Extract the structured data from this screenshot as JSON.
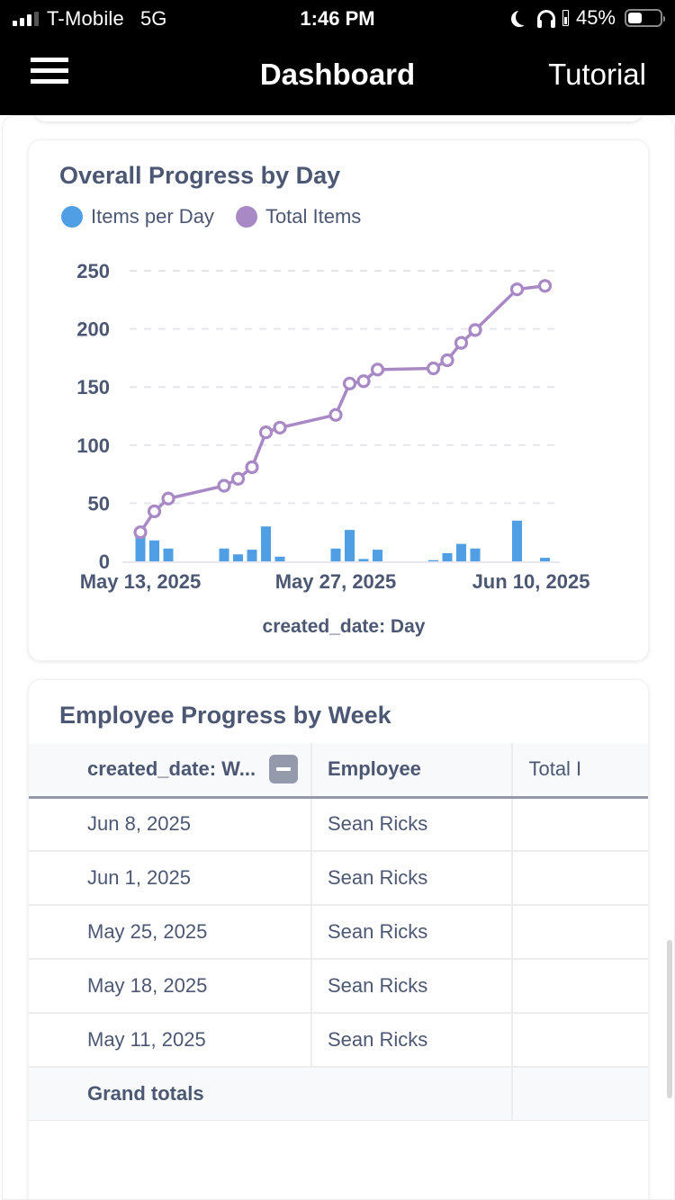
{
  "status_bar": {
    "carrier": "T-Mobile",
    "network": "5G",
    "time": "1:46 PM",
    "battery_percent_label": "45%",
    "battery_level": 0.45,
    "icons": [
      "signal-icon",
      "moon-icon",
      "headphones-icon",
      "battery-icon"
    ]
  },
  "nav": {
    "menu_icon": "hamburger-menu-icon",
    "title": "Dashboard",
    "right_action": "Tutorial"
  },
  "chart_card": {
    "title": "Overall Progress by Day",
    "legend": [
      {
        "label": "Items per Day",
        "color": "#509ee3"
      },
      {
        "label": "Total Items",
        "color": "#a989c5"
      }
    ]
  },
  "chart_data": {
    "type": "bar",
    "combo": "bar + line",
    "title": "Overall Progress by Day",
    "xlabel": "created_date: Day",
    "ylabel": "",
    "ylim": [
      0,
      250
    ],
    "yticks": [
      0,
      50,
      100,
      150,
      200,
      250
    ],
    "xticks": [
      "May 13, 2025",
      "May 27, 2025",
      "Jun 10, 2025"
    ],
    "x_range_days": [
      "May 13, 2025",
      "Jun 11, 2025"
    ],
    "grid": true,
    "legend_position": "top-left",
    "categories": [
      "May 13",
      "May 14",
      "May 15",
      "May 19",
      "May 20",
      "May 21",
      "May 22",
      "May 23",
      "May 27",
      "May 28",
      "May 29",
      "May 30",
      "Jun 3",
      "Jun 4",
      "Jun 5",
      "Jun 6",
      "Jun 9",
      "Jun 11"
    ],
    "day_offsets": [
      0,
      1,
      2,
      6,
      7,
      8,
      9,
      10,
      14,
      15,
      16,
      17,
      21,
      22,
      23,
      24,
      27,
      29
    ],
    "series": [
      {
        "name": "Items per Day",
        "type": "bar",
        "color": "#509ee3",
        "values": [
          25,
          18,
          11,
          11,
          6,
          10,
          30,
          4,
          11,
          27,
          2,
          10,
          1,
          7,
          15,
          11,
          35,
          3
        ]
      },
      {
        "name": "Total Items",
        "type": "line",
        "color": "#a989c5",
        "values": [
          25,
          43,
          54,
          65,
          71,
          81,
          111,
          115,
          126,
          153,
          155,
          165,
          166,
          173,
          188,
          199,
          234,
          237
        ]
      }
    ]
  },
  "table_card": {
    "title": "Employee Progress by Week",
    "columns": [
      "created_date: W...",
      "Employee",
      "Total I"
    ],
    "rows": [
      {
        "week": "Jun 8, 2025",
        "employee": "Sean Ricks",
        "total": ""
      },
      {
        "week": "Jun 1, 2025",
        "employee": "Sean Ricks",
        "total": ""
      },
      {
        "week": "May 25, 2025",
        "employee": "Sean Ricks",
        "total": ""
      },
      {
        "week": "May 18, 2025",
        "employee": "Sean Ricks",
        "total": ""
      },
      {
        "week": "May 11, 2025",
        "employee": "Sean Ricks",
        "total": ""
      }
    ],
    "totals_label": "Grand totals"
  }
}
